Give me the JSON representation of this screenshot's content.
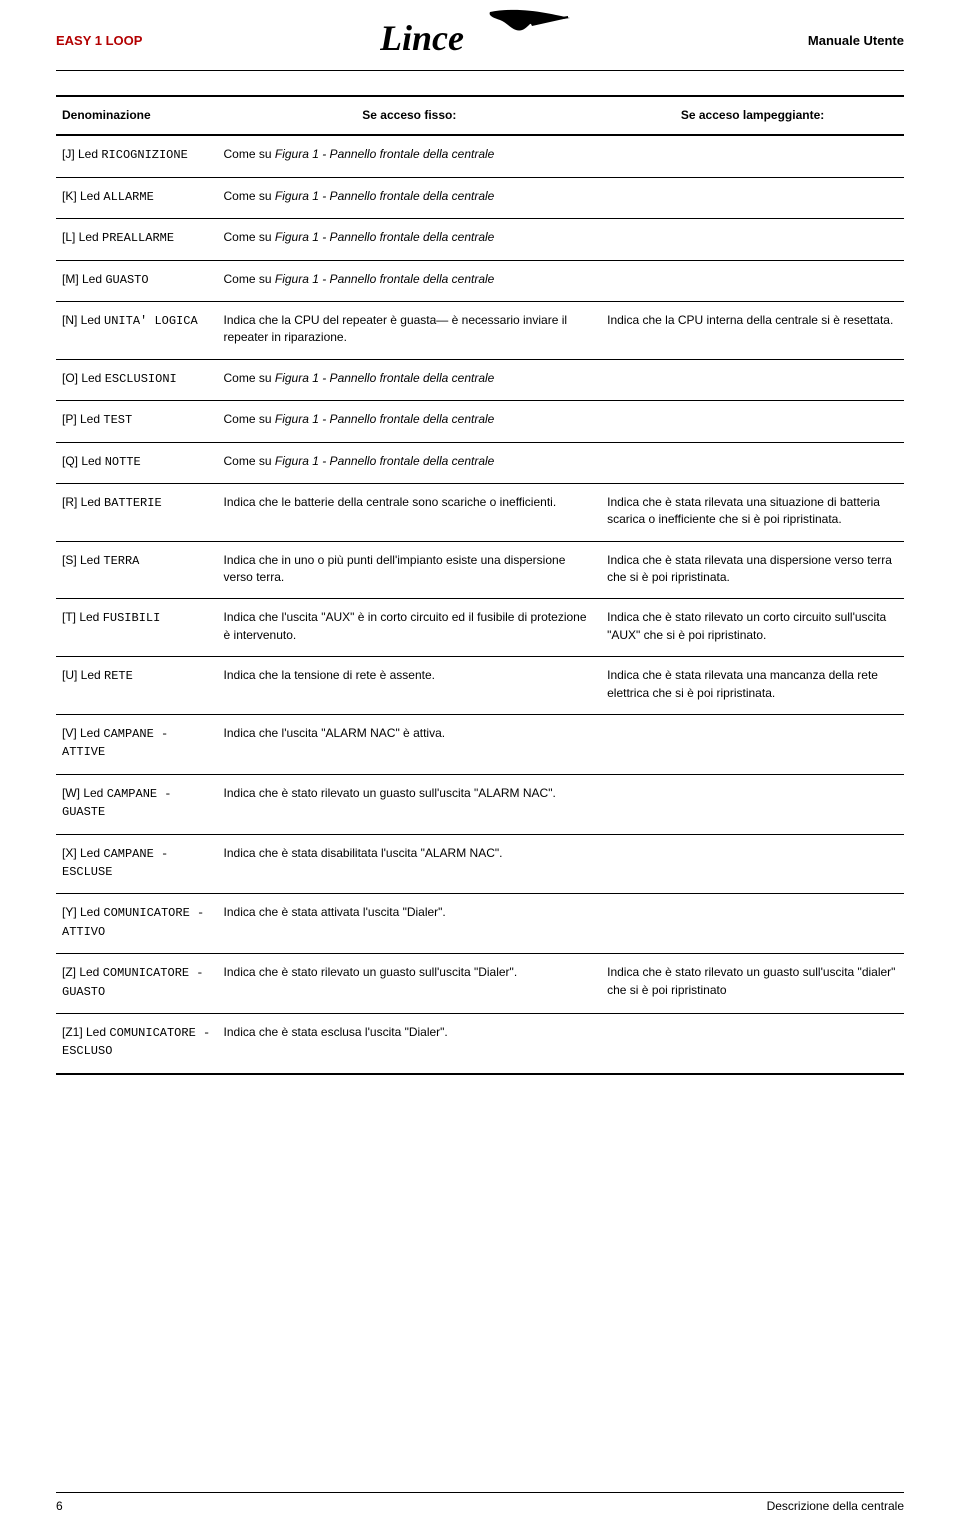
{
  "header": {
    "left": "EASY 1 LOOP",
    "right": "Manuale Utente",
    "logo_text": "Lince"
  },
  "table": {
    "columns": {
      "c1": "Denominazione",
      "c2": "Se acceso fisso:",
      "c3": "Se acceso lampeggiante:"
    },
    "rows": [
      {
        "prefix": "[J] Led ",
        "code": "RICOGNIZIONE",
        "fixed_italic": "Come su  Figura 1 - Pannello frontale della centrale",
        "blink": ""
      },
      {
        "prefix": "[K] Led ",
        "code": "ALLARME",
        "fixed_italic": "Come su  Figura 1 - Pannello frontale della centrale",
        "blink": ""
      },
      {
        "prefix": "[L] Led ",
        "code": "PREALLARME",
        "fixed_italic": "Come su  Figura 1 - Pannello frontale della centrale",
        "blink": ""
      },
      {
        "prefix": "[M] Led ",
        "code": "GUASTO",
        "fixed_italic": "Come su  Figura 1 - Pannello frontale della centrale",
        "blink": ""
      },
      {
        "prefix": "[N] Led ",
        "code": "UNITA' LOGICA",
        "fixed": "Indica che la CPU del repeater è guasta— è necessario inviare il repeater in riparazione.",
        "blink": "Indica che la CPU interna della centrale si è resettata."
      },
      {
        "prefix": "[O] Led ",
        "code": "ESCLUSIONI",
        "fixed_italic": "Come su  Figura 1 - Pannello frontale della centrale",
        "blink": ""
      },
      {
        "prefix": "[P] Led ",
        "code": "TEST",
        "fixed_italic": "Come su  Figura 1 - Pannello frontale della centrale",
        "blink": ""
      },
      {
        "prefix": "[Q] Led ",
        "code": "NOTTE",
        "fixed_italic": "Come su  Figura 1 - Pannello frontale della centrale",
        "blink": ""
      },
      {
        "prefix": "[R] Led ",
        "code": "BATTERIE",
        "fixed": "Indica che le batterie della centrale sono scariche o inefficienti.",
        "blink": "Indica che è stata rilevata una situazione di batteria scarica o inefficiente che si è poi ripristinata."
      },
      {
        "prefix": "[S] Led ",
        "code": "TERRA",
        "fixed": "Indica che in uno o più punti dell'impianto esiste una dispersione verso terra.",
        "blink": "Indica che è stata rilevata una dispersione verso terra che si è poi ripristinata."
      },
      {
        "prefix": "[T] Led ",
        "code": "FUSIBILI",
        "fixed": "Indica che l'uscita \"AUX\" è in corto circuito ed il fusibile di protezione è intervenuto.",
        "blink": "Indica che è stato rilevato un corto circuito sull'uscita \"AUX\" che si è poi ripristinato."
      },
      {
        "prefix": "[U] Led ",
        "code": "RETE",
        "fixed": "Indica che la tensione di rete è assente.",
        "blink": "Indica che è stata rilevata una mancanza della rete elettrica che si è poi ripristinata."
      },
      {
        "prefix": "[V] Led ",
        "code": "CAMPANE - ATTIVE",
        "fixed": "Indica che l'uscita \"ALARM NAC\" è attiva.",
        "blink": ""
      },
      {
        "prefix": "[W] Led ",
        "code": "CAMPANE - GUASTE",
        "fixed": "Indica che è stato rilevato un guasto sull'uscita \"ALARM NAC\".",
        "blink": ""
      },
      {
        "prefix": "[X] Led ",
        "code": "CAMPANE - ESCLUSE",
        "fixed": "Indica che è stata disabilitata l'uscita \"ALARM NAC\".",
        "blink": ""
      },
      {
        "prefix": "[Y] Led ",
        "code": "COMUNICATORE - ATTIVO",
        "fixed": "Indica che è stata attivata l'uscita \"Dialer\".",
        "blink": ""
      },
      {
        "prefix": "[Z] Led ",
        "code": "COMUNICATORE - GUASTO",
        "fixed": "Indica che è stato rilevato un guasto sull'uscita \"Dialer\".",
        "blink": "Indica che è stato rilevato un guasto sull'uscita \"dialer\" che si è poi ripristinato"
      },
      {
        "prefix": "[Z1] Led ",
        "code": "COMUNICATORE - ESCLUSO",
        "fixed": "Indica che è stata esclusa l'uscita \"Dialer\".",
        "blink": ""
      }
    ]
  },
  "footer": {
    "page_number": "6",
    "section": "Descrizione della centrale"
  }
}
